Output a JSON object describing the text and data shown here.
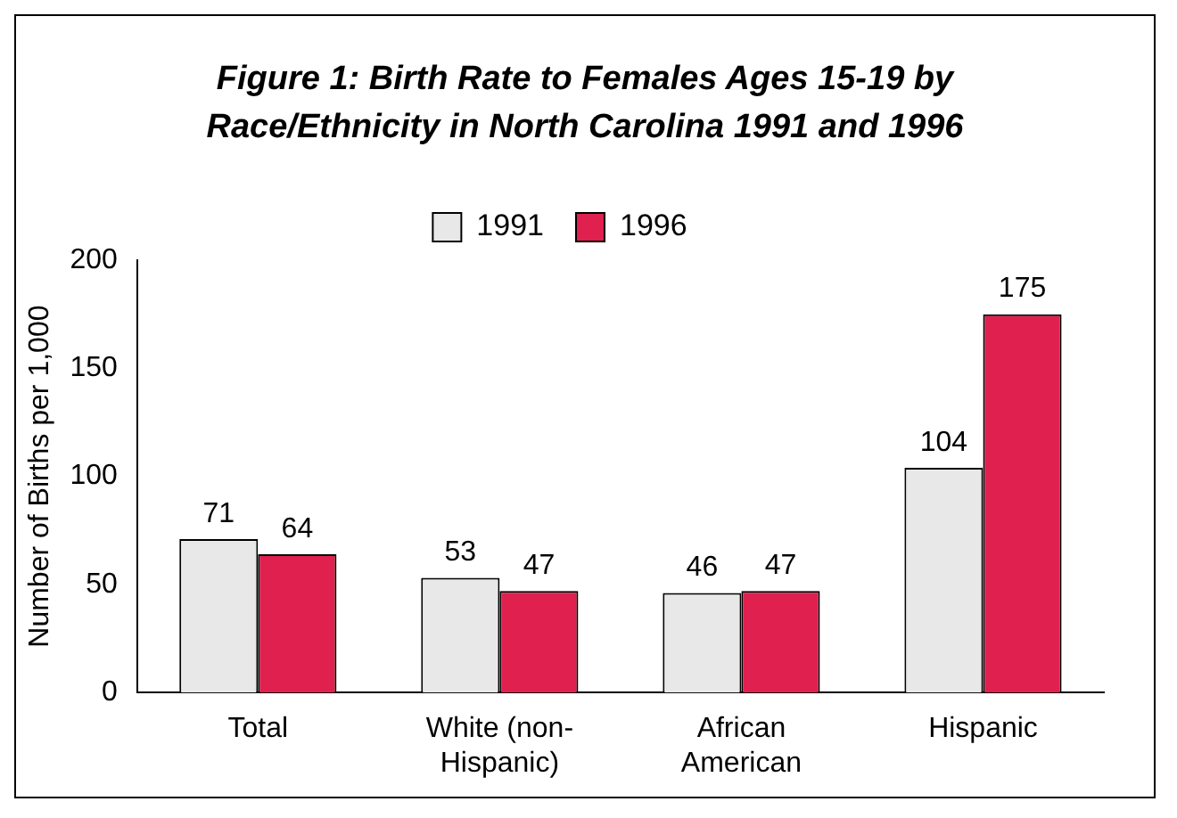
{
  "chart_data": {
    "type": "bar",
    "title": "Figure 1: Birth Rate to Females Ages 15-19 by Race/Ethnicity in North Carolina 1991 and 1996",
    "ylabel": "Number of Births per 1,000",
    "categories": [
      "Total",
      "White (non-Hispanic)",
      "African American",
      "Hispanic"
    ],
    "series": [
      {
        "name": "1991",
        "color": "#e8e8e8",
        "values": [
          71,
          53,
          46,
          104
        ]
      },
      {
        "name": "1996",
        "color": "#e0204f",
        "values": [
          64,
          47,
          47,
          175
        ]
      }
    ],
    "ylim": [
      0,
      200
    ],
    "yticks": [
      0,
      50,
      100,
      150,
      200
    ],
    "grid": false,
    "legend": "top",
    "data_labels": true
  }
}
